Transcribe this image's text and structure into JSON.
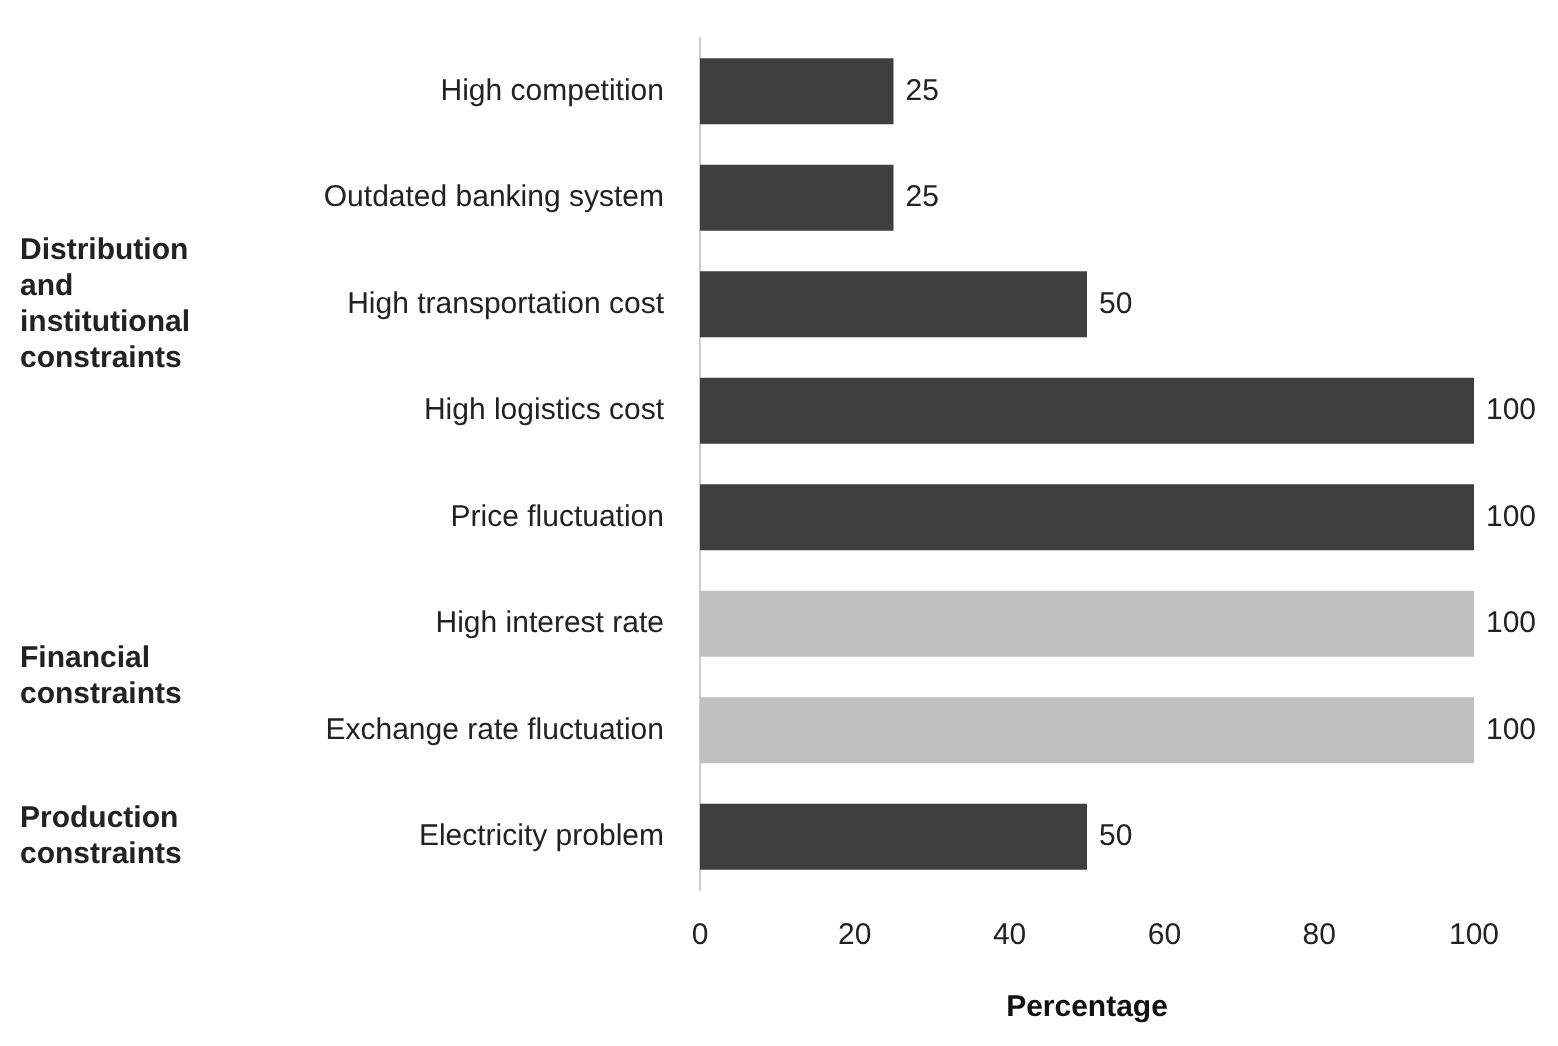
{
  "chart_data": {
    "type": "bar",
    "orientation": "horizontal",
    "categories": [
      "High competition",
      "Outdated banking system",
      "High transportation cost",
      "High logistics cost",
      "Price fluctuation",
      "High interest rate",
      "Exchange rate fluctuation",
      "Electricity problem"
    ],
    "values": [
      25,
      25,
      50,
      100,
      100,
      100,
      100,
      50
    ],
    "colors": [
      "#3f3f3f",
      "#3f3f3f",
      "#3f3f3f",
      "#3f3f3f",
      "#3f3f3f",
      "#c0c0c0",
      "#c0c0c0",
      "#3f3f3f"
    ],
    "xlabel": "Percentage",
    "xlim": [
      0,
      100
    ],
    "xticks": [
      0,
      20,
      40,
      60,
      80,
      100
    ],
    "grid": false,
    "legend": false,
    "data_labels": true,
    "annotations": [
      "Distribution and institutional constraints",
      "Financial constraints",
      "Production constraints"
    ]
  }
}
